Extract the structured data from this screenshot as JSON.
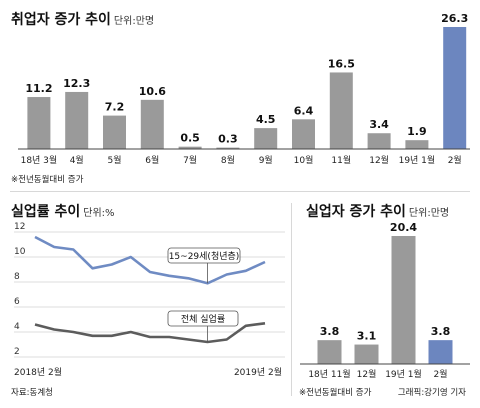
{
  "chart_data": [
    {
      "type": "bar",
      "title": "취업자 증가 추이",
      "unit": "단위:만명",
      "note": "※전년동월대비 증가",
      "categories": [
        "18년 3월",
        "4월",
        "5월",
        "6월",
        "7월",
        "8월",
        "9월",
        "10월",
        "11월",
        "12월",
        "19년 1월",
        "2월"
      ],
      "values": [
        11.2,
        12.3,
        7.2,
        10.6,
        0.5,
        0.3,
        4.5,
        6.4,
        16.5,
        3.4,
        1.9,
        26.3
      ],
      "value_labels": [
        "11.2",
        "12.3",
        "7.2",
        "10.6",
        "0.5",
        "0.3",
        "4.5",
        "6.4",
        "16.5",
        "3.4",
        "1.9",
        "26.3"
      ],
      "highlight_index": 11,
      "colors": {
        "bar": "#9a9a9a",
        "highlight": "#6c86bf"
      }
    },
    {
      "type": "line",
      "title": "실업률 추이",
      "unit": "단위:%",
      "source": "자료:동계청",
      "x_start_label": "2018년 2월",
      "x_end_label": "2019년 2월",
      "yticks": [
        2,
        4,
        6,
        8,
        10,
        12
      ],
      "ylim": [
        2,
        12
      ],
      "series": [
        {
          "name": "15~29세(청년층)",
          "values": [
            11.6,
            10.8,
            10.6,
            9.1,
            9.4,
            10.0,
            8.8,
            8.5,
            8.3,
            7.9,
            8.6,
            8.9,
            9.6
          ],
          "color": "#6f8bc3"
        },
        {
          "name": "전체 실업률",
          "values": [
            4.6,
            4.2,
            4.0,
            3.7,
            3.7,
            4.0,
            3.6,
            3.6,
            3.4,
            3.2,
            3.4,
            4.5,
            4.7
          ],
          "color": "#5c5c5c"
        }
      ]
    },
    {
      "type": "bar",
      "title": "실업자 증가 추이",
      "unit": "단위:만명",
      "note": "※전년동월대비 증가",
      "categories": [
        "18년 11월",
        "12월",
        "19년 1월",
        "2월"
      ],
      "values": [
        3.8,
        3.1,
        20.4,
        3.8
      ],
      "value_labels": [
        "3.8",
        "3.1",
        "20.4",
        "3.8"
      ],
      "highlight_index": 3,
      "colors": {
        "bar": "#9a9a9a",
        "highlight": "#6c86bf"
      }
    }
  ],
  "credit": "그래픽:강기영 기자"
}
